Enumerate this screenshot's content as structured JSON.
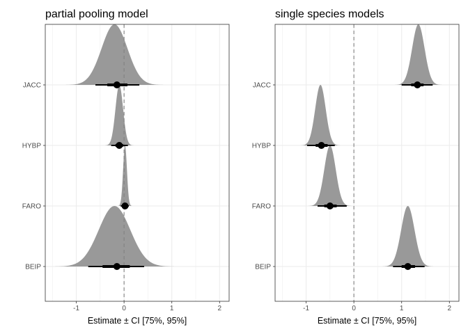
{
  "chart_data": [
    {
      "type": "ridgeline",
      "title": "partial pooling model",
      "xlabel": "Estimate ± CI [75%, 95%]",
      "ylabel": "",
      "xlim": [
        -1.65,
        2.2
      ],
      "xticks": [
        -1,
        0,
        1,
        2
      ],
      "reference_line_x": 0,
      "grid": true,
      "colors": {
        "density": "#999999",
        "interval": "#000000",
        "reference": "#808080"
      },
      "categories": [
        "JACC",
        "HYBP",
        "FARO",
        "BEIP"
      ],
      "series": [
        {
          "category": "JACC",
          "median": -0.15,
          "ci75": [
            -0.35,
            0.07
          ],
          "ci95": [
            -0.6,
            0.32
          ],
          "density_mode": -0.2,
          "density_sd": 0.27
        },
        {
          "category": "HYBP",
          "median": -0.1,
          "ci75": [
            -0.18,
            -0.02
          ],
          "ci95": [
            -0.27,
            0.08
          ],
          "density_mode": -0.1,
          "density_sd": 0.08
        },
        {
          "category": "FARO",
          "median": 0.02,
          "ci75": [
            -0.02,
            0.06
          ],
          "ci95": [
            -0.07,
            0.1
          ],
          "density_mode": 0.02,
          "density_sd": 0.04
        },
        {
          "category": "BEIP",
          "median": -0.15,
          "ci75": [
            -0.45,
            0.12
          ],
          "ci95": [
            -0.75,
            0.42
          ],
          "density_mode": -0.2,
          "density_sd": 0.33
        }
      ]
    },
    {
      "type": "ridgeline",
      "title": "single species models",
      "xlabel": "Estimate ± CI [75%, 95%]",
      "ylabel": "",
      "xlim": [
        -1.65,
        2.2
      ],
      "xticks": [
        -1,
        0,
        1,
        2
      ],
      "reference_line_x": 0,
      "grid": true,
      "colors": {
        "density": "#999999",
        "interval": "#000000",
        "reference": "#808080"
      },
      "categories": [
        "JACC",
        "HYBP",
        "FARO",
        "BEIP"
      ],
      "series": [
        {
          "category": "JACC",
          "median": 1.33,
          "ci75": [
            1.2,
            1.46
          ],
          "ci95": [
            1.0,
            1.65
          ],
          "density_mode": 1.35,
          "density_sd": 0.13
        },
        {
          "category": "HYBP",
          "median": -0.68,
          "ci75": [
            -0.8,
            -0.55
          ],
          "ci95": [
            -0.98,
            -0.4
          ],
          "density_mode": -0.7,
          "density_sd": 0.11
        },
        {
          "category": "FARO",
          "median": -0.5,
          "ci75": [
            -0.62,
            -0.36
          ],
          "ci95": [
            -0.76,
            -0.15
          ],
          "density_mode": -0.5,
          "density_sd": 0.12
        },
        {
          "category": "BEIP",
          "median": 1.13,
          "ci75": [
            1.0,
            1.28
          ],
          "ci95": [
            0.82,
            1.48
          ],
          "density_mode": 1.13,
          "density_sd": 0.14
        }
      ]
    }
  ]
}
